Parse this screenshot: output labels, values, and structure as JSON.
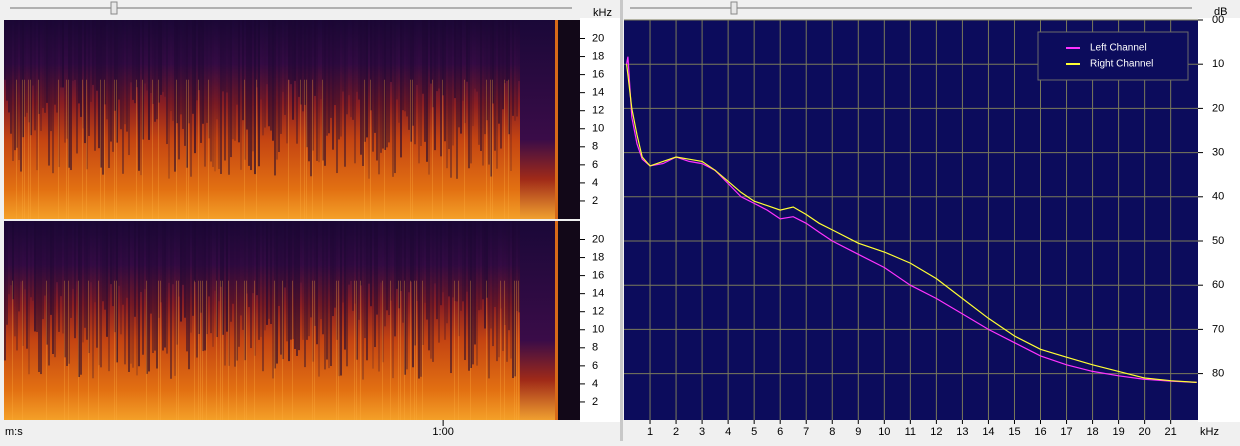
{
  "chart_data": [
    {
      "type": "spectrogram",
      "y_unit": "kHz",
      "x_label": "m:s",
      "ylim": [
        0,
        22.05
      ],
      "yticks": [
        2,
        4,
        6,
        8,
        10,
        12,
        14,
        16,
        18,
        20
      ],
      "xlim": [
        0,
        78.7
      ],
      "xticks": [
        {
          "value": 60,
          "label": "1:00"
        }
      ]
    },
    {
      "type": "line",
      "y_unit": "dB",
      "x_unit": "kHz",
      "legend": "top-right",
      "grid": true,
      "y_inverted": true,
      "xlim": [
        0,
        22.05
      ],
      "xticks": [
        1,
        2,
        3,
        4,
        5,
        6,
        7,
        8,
        9,
        10,
        11,
        12,
        13,
        14,
        15,
        16,
        17,
        18,
        19,
        20,
        21
      ],
      "ylim": [
        0,
        90.5
      ],
      "yticks": [
        {
          "value": 0,
          "label": "00"
        },
        10,
        20,
        30,
        40,
        50,
        60,
        70,
        80
      ],
      "x": [
        0.1,
        0.15,
        0.3,
        0.5,
        0.7,
        1,
        1.5,
        2,
        2.5,
        3,
        3.5,
        4,
        4.5,
        5,
        5.5,
        6,
        6.5,
        7,
        7.5,
        8,
        9,
        10,
        11,
        12,
        13,
        14,
        15,
        16,
        17,
        18,
        19,
        20,
        21,
        22
      ],
      "series": [
        {
          "name": "Left Channel",
          "color": "#ff33ff",
          "values": [
            10,
            8.3,
            22,
            28,
            31.5,
            33,
            32.5,
            31,
            32,
            32.5,
            34,
            37,
            40,
            41.5,
            43,
            45,
            44.5,
            46,
            48,
            50,
            53,
            56,
            60,
            63,
            66.5,
            70,
            73,
            76,
            78,
            79.5,
            80.5,
            81.3,
            81.7,
            82
          ]
        },
        {
          "name": "Right Channel",
          "color": "#ffff33",
          "values": [
            10,
            12.4,
            20,
            26,
            31,
            33,
            32,
            31,
            31.5,
            32,
            34,
            36.5,
            39,
            41,
            42,
            43,
            42.3,
            44,
            46,
            47.5,
            50.5,
            52.5,
            55,
            58.5,
            63,
            67.5,
            71.5,
            74.5,
            76.3,
            78,
            79.5,
            81,
            81.6,
            82
          ]
        }
      ]
    }
  ]
}
